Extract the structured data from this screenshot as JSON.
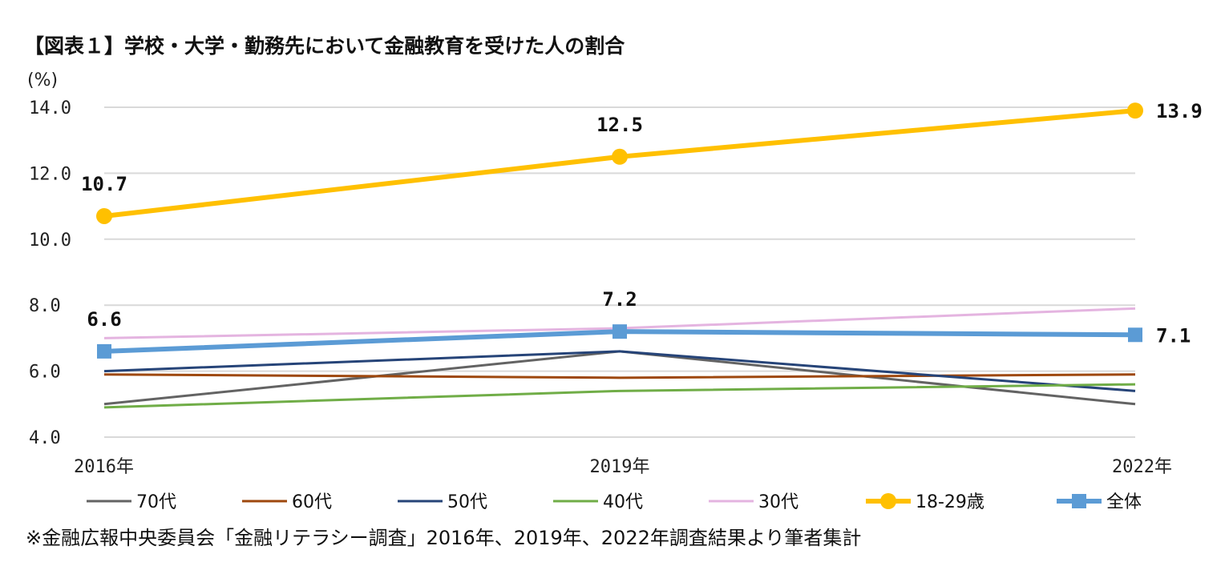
{
  "chart_data": {
    "type": "line",
    "title": "【図表１】学校・大学・勤務先において金融教育を受けた人の割合",
    "ylabel": "(%)",
    "xlabel": "",
    "ylim": [
      4.0,
      14.0
    ],
    "yticks": [
      "4.0",
      "6.0",
      "8.0",
      "10.0",
      "12.0",
      "14.0"
    ],
    "ytick_values": [
      4,
      6,
      8,
      10,
      12,
      14
    ],
    "categories": [
      "2016年",
      "2019年",
      "2022年"
    ],
    "grid": true,
    "legend_position": "bottom",
    "series": [
      {
        "name": "70代",
        "values": [
          5.0,
          6.6,
          5.0
        ],
        "color": "#636363",
        "marker": "none"
      },
      {
        "name": "60代",
        "values": [
          5.9,
          5.8,
          5.9
        ],
        "color": "#9e480e",
        "marker": "none"
      },
      {
        "name": "50代",
        "values": [
          6.0,
          6.6,
          5.4
        ],
        "color": "#264478",
        "marker": "none"
      },
      {
        "name": "40代",
        "values": [
          4.9,
          5.4,
          5.6
        ],
        "color": "#70ad47",
        "marker": "none"
      },
      {
        "name": "30代",
        "values": [
          7.0,
          7.3,
          7.9
        ],
        "color": "#e4b4e0",
        "marker": "none"
      },
      {
        "name": "18-29歳",
        "values": [
          10.7,
          12.5,
          13.9
        ],
        "color": "#ffc000",
        "marker": "circle",
        "labels": [
          "10.7",
          "12.5",
          "13.9"
        ]
      },
      {
        "name": "全体",
        "values": [
          6.6,
          7.2,
          7.1
        ],
        "color": "#5b9bd5",
        "marker": "square",
        "labels": [
          "6.6",
          "7.2",
          "7.1"
        ]
      }
    ],
    "footnote": "※金融広報中央委員会「金融リテラシー調査」2016年、2019年、2022年調査結果より筆者集計"
  }
}
